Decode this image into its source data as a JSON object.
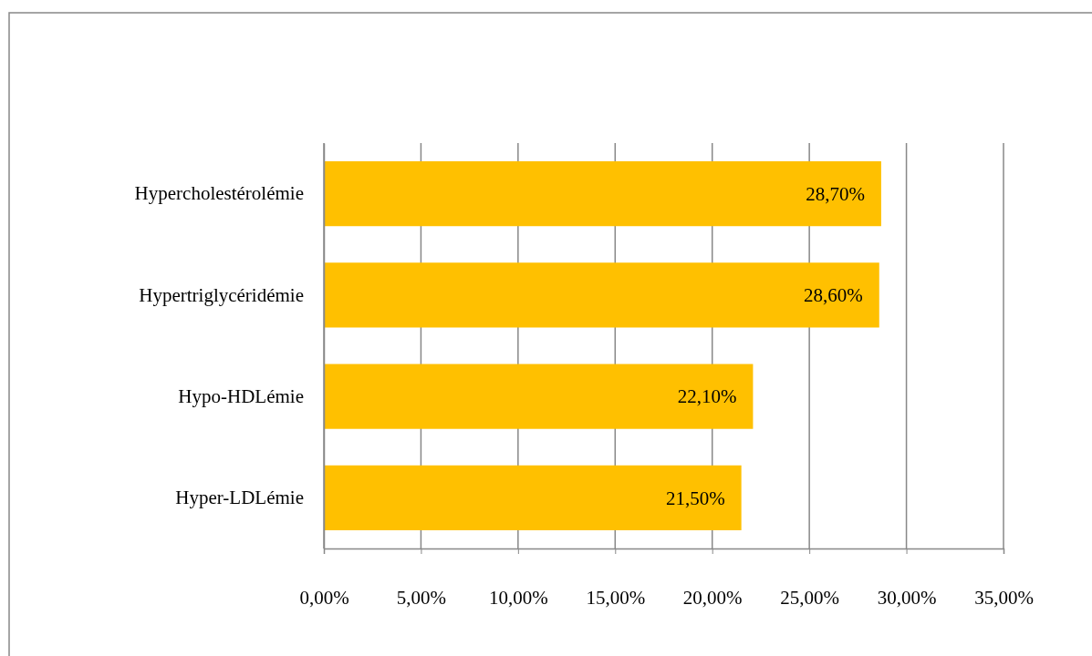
{
  "chart_data": {
    "type": "bar",
    "orientation": "horizontal",
    "categories": [
      "Hypercholestérolémie",
      "Hypertriglycéridémie",
      "Hypo-HDLémie",
      "Hyper-LDLémie"
    ],
    "values": [
      28.7,
      28.6,
      22.1,
      21.5
    ],
    "color": "#ffc000",
    "value_labels": [
      "28,70%",
      "28,60%",
      "22,10%",
      "21,50%"
    ],
    "xlim": [
      0,
      35
    ],
    "xticks": [
      {
        "value": 0,
        "label": "0,00%"
      },
      {
        "value": 5,
        "label": "5,00%"
      },
      {
        "value": 10,
        "label": "10,00%"
      },
      {
        "value": 15,
        "label": "15,00%"
      },
      {
        "value": 20,
        "label": "20,00%"
      },
      {
        "value": 25,
        "label": "25,00%"
      },
      {
        "value": 30,
        "label": "30,00%"
      },
      {
        "value": 35,
        "label": "35,00%"
      }
    ],
    "grid": "x"
  }
}
